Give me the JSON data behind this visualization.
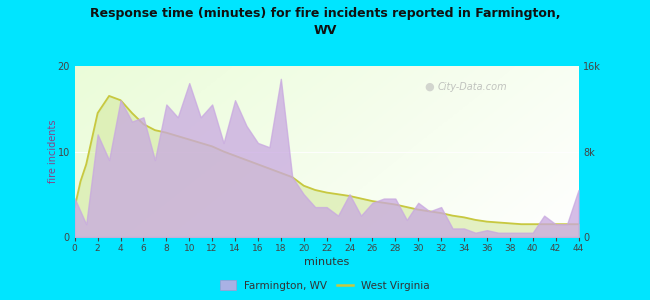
{
  "title": "Response time (minutes) for fire incidents reported in Farmington,\nWV",
  "xlabel": "minutes",
  "ylabel": "fire incidents",
  "background_color": "#00e5ff",
  "x_ticks": [
    0,
    2,
    4,
    6,
    8,
    10,
    12,
    14,
    16,
    18,
    20,
    22,
    24,
    26,
    28,
    30,
    32,
    34,
    36,
    38,
    40,
    42,
    44
  ],
  "ylim_left": [
    0,
    20
  ],
  "ylim_right": [
    0,
    16000
  ],
  "yticks_left": [
    0,
    10,
    20
  ],
  "yticks_right_labels": [
    "0",
    "8k",
    "16k"
  ],
  "farmington_x": [
    0,
    1,
    2,
    3,
    4,
    5,
    6,
    7,
    8,
    9,
    10,
    11,
    12,
    13,
    14,
    15,
    16,
    17,
    18,
    19,
    20,
    21,
    22,
    23,
    24,
    25,
    26,
    27,
    28,
    29,
    30,
    31,
    32,
    33,
    34,
    35,
    36,
    37,
    38,
    39,
    40,
    41,
    42,
    43,
    44
  ],
  "farmington_y": [
    4.5,
    1.5,
    12.0,
    9.0,
    16.0,
    13.5,
    14.0,
    9.0,
    15.5,
    14.0,
    18.0,
    14.0,
    15.5,
    11.0,
    16.0,
    13.0,
    11.0,
    10.5,
    18.5,
    7.0,
    5.0,
    3.5,
    3.5,
    2.5,
    5.0,
    2.5,
    4.0,
    4.5,
    4.5,
    2.0,
    4.0,
    3.0,
    3.5,
    1.0,
    1.0,
    0.5,
    0.8,
    0.5,
    0.5,
    0.5,
    0.5,
    2.5,
    1.5,
    1.5,
    5.5
  ],
  "wv_x": [
    0,
    0.5,
    1,
    2,
    3,
    4,
    5,
    6,
    7,
    8,
    9,
    10,
    11,
    12,
    13,
    14,
    15,
    16,
    17,
    18,
    19,
    20,
    21,
    22,
    23,
    24,
    25,
    26,
    27,
    28,
    29,
    30,
    31,
    32,
    33,
    34,
    35,
    36,
    37,
    38,
    39,
    40,
    41,
    42,
    43,
    44
  ],
  "wv_y_scaled": [
    3.5,
    6.5,
    8.5,
    14.5,
    16.5,
    16.0,
    14.5,
    13.2,
    12.5,
    12.2,
    11.8,
    11.4,
    11.0,
    10.6,
    10.0,
    9.5,
    9.0,
    8.5,
    8.0,
    7.5,
    7.0,
    6.0,
    5.5,
    5.2,
    5.0,
    4.8,
    4.5,
    4.2,
    4.0,
    3.8,
    3.5,
    3.2,
    3.0,
    2.8,
    2.5,
    2.3,
    2.0,
    1.8,
    1.7,
    1.6,
    1.5,
    1.5,
    1.5,
    1.5,
    1.5,
    1.5
  ],
  "farmington_fill_color": "#c8a8e0",
  "farmington_fill_alpha": 0.75,
  "wv_fill_color": "#d4e8a0",
  "wv_fill_alpha": 0.6,
  "wv_line_color": "#c8c840",
  "watermark": "City-Data.com",
  "legend_farmington": "Farmington, WV",
  "legend_wv": "West Virginia"
}
